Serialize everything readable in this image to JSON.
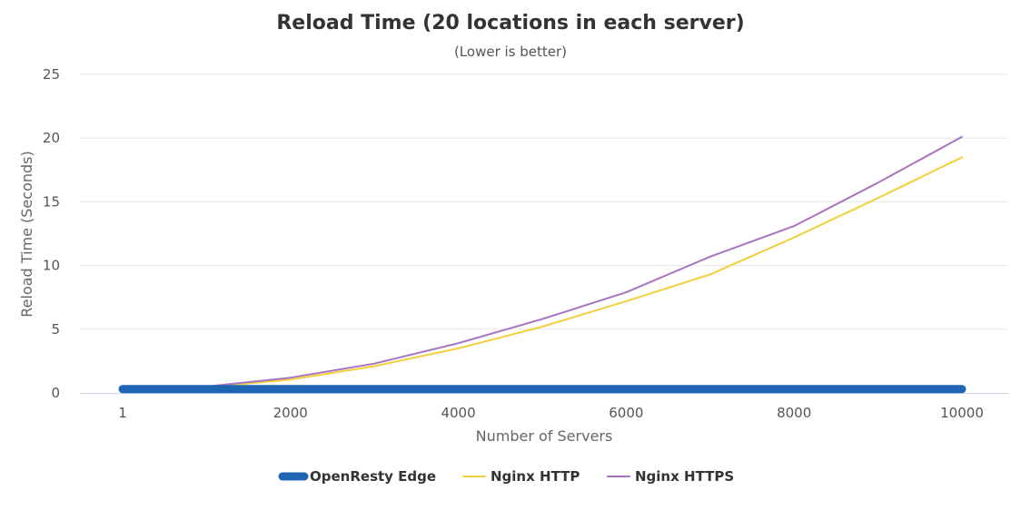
{
  "chart_data": {
    "type": "line",
    "title": "Reload Time (20 locations in each server)",
    "subtitle": "(Lower is better)",
    "xlabel": "Number of Servers",
    "ylabel": "Reload Time (Seconds)",
    "xlim": [
      1,
      10000
    ],
    "ylim": [
      0,
      25
    ],
    "x_ticks": [
      1,
      2000,
      4000,
      6000,
      8000,
      10000
    ],
    "y_ticks": [
      0,
      5,
      10,
      15,
      20,
      25
    ],
    "grid": true,
    "legend_position": "bottom-center",
    "series": [
      {
        "name": "OpenResty Edge",
        "color": "#1f65b3",
        "x": [
          1,
          1000,
          2000,
          3000,
          4000,
          5000,
          6000,
          7000,
          8000,
          9000,
          10000
        ],
        "y": [
          0.3,
          0.3,
          0.3,
          0.3,
          0.3,
          0.3,
          0.3,
          0.3,
          0.3,
          0.3,
          0.3
        ]
      },
      {
        "name": "Nginx HTTP",
        "color": "#f2cf3b",
        "x": [
          1,
          1000,
          2000,
          3000,
          4000,
          5000,
          6000,
          7000,
          8000,
          9000,
          10000
        ],
        "y": [
          0.3,
          0.45,
          1.05,
          2.1,
          3.5,
          5.2,
          7.2,
          9.3,
          12.2,
          15.3,
          18.5
        ]
      },
      {
        "name": "Nginx HTTPS",
        "color": "#a774c2",
        "x": [
          1,
          1000,
          2000,
          3000,
          4000,
          5000,
          6000,
          7000,
          8000,
          9000,
          10000
        ],
        "y": [
          0.3,
          0.5,
          1.2,
          2.3,
          3.9,
          5.8,
          7.9,
          10.7,
          13.1,
          16.5,
          20.1
        ]
      }
    ]
  }
}
